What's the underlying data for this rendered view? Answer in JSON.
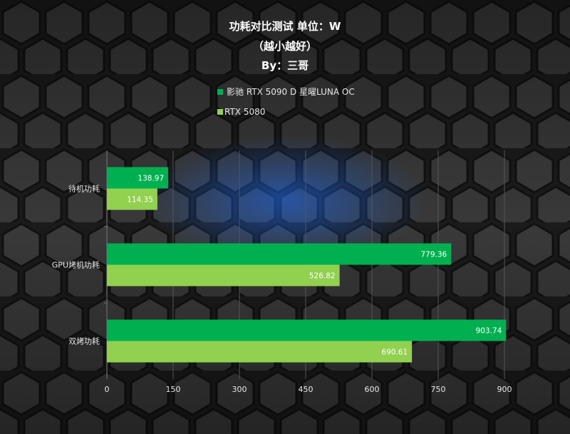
{
  "chart_data": {
    "type": "bar",
    "orientation": "horizontal",
    "title": "功耗对比测试 单位：W",
    "subtitle": "（越小越好）",
    "author": "By：三哥",
    "categories": [
      "待机功耗",
      "GPU烤机功耗",
      "双烤功耗"
    ],
    "series": [
      {
        "name": "影驰 RTX 5090 D 星曜LUNA OC",
        "values": [
          138.97,
          779.36,
          903.74
        ],
        "color": "#00b050"
      },
      {
        "name": "RTX 5080",
        "values": [
          114.35,
          526.82,
          690.61
        ],
        "color": "#92d050"
      }
    ],
    "xlim": [
      0,
      900
    ],
    "xticks": [
      "0",
      "150",
      "300",
      "450",
      "600",
      "750",
      "900"
    ],
    "grid": true,
    "legend_position": "top"
  }
}
